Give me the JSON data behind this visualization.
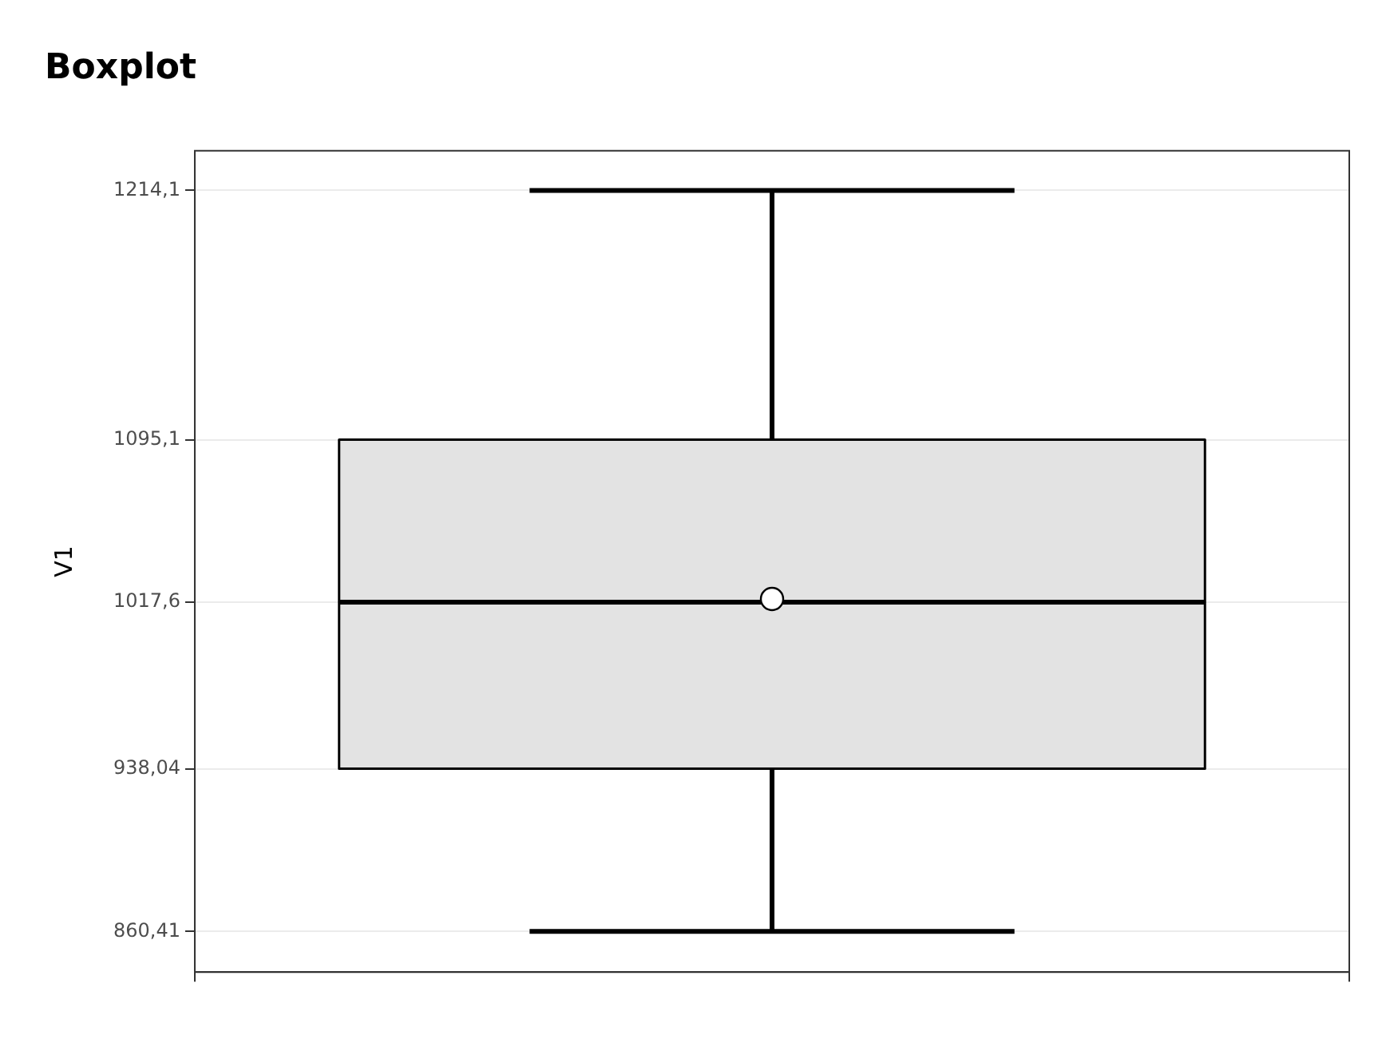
{
  "chart_data": {
    "type": "box",
    "title": "Boxplot",
    "ylabel": "V1",
    "categories": [
      null
    ],
    "color": "#e3e3e3",
    "boxes": [
      {
        "low": 860.41,
        "q1": 938.04,
        "median": 1017.6,
        "q3": 1095.1,
        "high": 1214.1,
        "mean": 1019.1
      }
    ],
    "ylim": [
      841,
      1233
    ],
    "yticks": [
      {
        "value": 860.41,
        "label": "860,41"
      },
      {
        "value": 938.04,
        "label": "938,04"
      },
      {
        "value": 1017.6,
        "label": "1017,6"
      },
      {
        "value": 1095.1,
        "label": "1095,1"
      },
      {
        "value": 1214.1,
        "label": "1214,1"
      }
    ],
    "grid": true,
    "legend": false
  }
}
